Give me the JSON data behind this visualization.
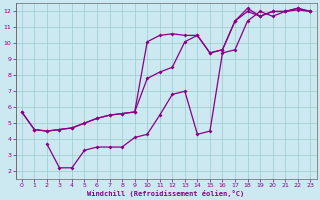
{
  "xlabel": "Windchill (Refroidissement éolien,°C)",
  "bg_color": "#cce8f0",
  "grid_color": "#99cccc",
  "line_color": "#880088",
  "xlim": [
    -0.5,
    23.5
  ],
  "ylim": [
    1.5,
    12.5
  ],
  "xticks": [
    0,
    1,
    2,
    3,
    4,
    5,
    6,
    7,
    8,
    9,
    10,
    11,
    12,
    13,
    14,
    15,
    16,
    17,
    18,
    19,
    20,
    21,
    22,
    23
  ],
  "yticks": [
    2,
    3,
    4,
    5,
    6,
    7,
    8,
    9,
    10,
    11,
    12
  ],
  "line1_x": [
    0,
    1,
    2,
    3,
    4,
    5,
    6,
    7,
    8,
    9,
    10,
    11,
    12,
    13,
    14,
    15,
    16,
    17,
    18,
    19,
    20,
    21,
    22,
    23
  ],
  "line1_y": [
    5.7,
    4.6,
    4.5,
    4.6,
    4.7,
    5.0,
    5.3,
    5.5,
    5.6,
    5.7,
    10.1,
    10.5,
    10.6,
    10.5,
    10.5,
    9.4,
    9.6,
    11.4,
    12.2,
    11.7,
    12.0,
    12.0,
    12.2,
    12.0
  ],
  "line2_x": [
    0,
    1,
    2,
    3,
    4,
    5,
    6,
    7,
    8,
    9,
    10,
    11,
    12,
    13,
    14,
    15,
    16,
    17,
    18,
    19,
    20,
    21,
    22,
    23
  ],
  "line2_y": [
    5.7,
    4.6,
    4.5,
    4.6,
    4.7,
    5.0,
    5.3,
    5.5,
    5.6,
    5.7,
    7.8,
    8.2,
    8.5,
    10.1,
    10.5,
    9.4,
    9.6,
    11.4,
    12.0,
    11.7,
    12.0,
    12.0,
    12.2,
    12.0
  ],
  "line3_x": [
    2,
    3,
    4,
    5,
    6,
    7,
    8,
    9,
    10,
    11,
    12,
    13,
    14,
    15,
    16,
    17,
    18,
    19,
    20,
    21,
    22,
    23
  ],
  "line3_y": [
    3.7,
    2.2,
    2.2,
    3.3,
    3.5,
    3.5,
    3.5,
    4.1,
    4.3,
    5.5,
    6.8,
    7.0,
    4.3,
    4.5,
    9.4,
    9.6,
    11.4,
    12.0,
    11.7,
    12.0,
    12.1,
    12.0
  ]
}
